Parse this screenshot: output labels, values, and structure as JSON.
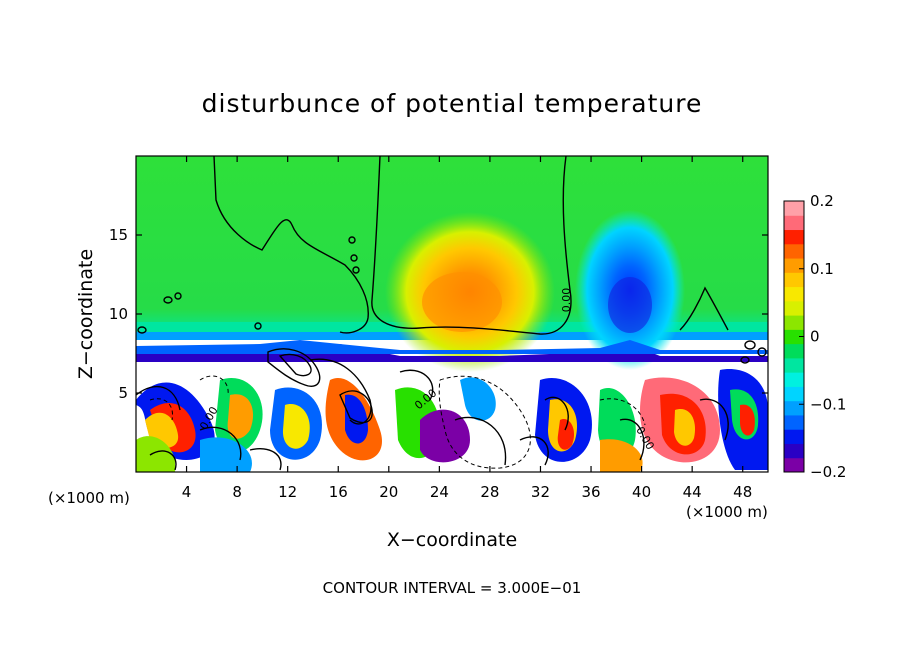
{
  "chart_data": {
    "type": "heatmap",
    "title": "disturbunce of potential temperature",
    "xlabel": "X−coordinate",
    "ylabel": "Z−coordinate",
    "x_unit": "(×1000 m)",
    "x_unit_right": "(×1000 m)",
    "xlim": [
      0,
      50
    ],
    "ylim": [
      0,
      20
    ],
    "x_ticks": [
      4,
      8,
      12,
      16,
      20,
      24,
      28,
      32,
      36,
      40,
      44,
      48
    ],
    "y_ticks": [
      5,
      10,
      15
    ],
    "colorbar": {
      "range": [
        -0.2,
        0.2
      ],
      "tick_values": [
        0.2,
        0.1,
        0,
        -0.1,
        -0.2
      ],
      "tick_labels": [
        "0.2",
        "0.1",
        "0",
        "−0.1",
        "−0.2"
      ],
      "colors": [
        "#7b00a6",
        "#2a00c4",
        "#0018f0",
        "#0064ff",
        "#00a0ff",
        "#00d4ff",
        "#00f0e0",
        "#00e6a0",
        "#00dc5a",
        "#28e000",
        "#8ce600",
        "#d8f000",
        "#f8e800",
        "#ffc800",
        "#ff9c00",
        "#ff6400",
        "#ff2000",
        "#ff6a78",
        "#ffa0a8"
      ]
    },
    "contour_label": "0.00",
    "footer": "CONTOUR INTERVAL = 3.000E−01",
    "features": [
      {
        "x": 27,
        "z": 11.5,
        "value": 0.12
      },
      {
        "x": 40,
        "z": 10.5,
        "value": -0.13
      }
    ],
    "colors": {
      "background_field": "#2ee03a",
      "cold_anomaly": "#1020e0",
      "warm_anomaly": "#ff8c00"
    }
  }
}
